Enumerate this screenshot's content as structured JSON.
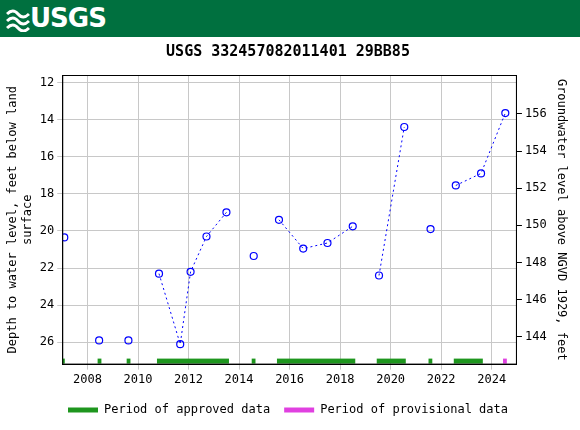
{
  "header": {
    "logo": "USGS"
  },
  "chart_data": {
    "type": "line",
    "title": "USGS 332457082011401 29BB85",
    "ylabel": [
      "Depth to water level, feet below land",
      "surface"
    ],
    "y2label": "Groundwater level above NGVD 1929, feet",
    "x": [
      2007.08,
      null,
      2008.46,
      null,
      2009.62,
      null,
      2010.83,
      2011.67,
      2012.08,
      2012.71,
      2013.5,
      null,
      2014.58,
      null,
      2015.58,
      2016.54,
      2017.5,
      2018.5,
      null,
      2019.54,
      2020.54,
      null,
      2021.58,
      null,
      2022.58,
      2023.58,
      2024.54
    ],
    "values": [
      20.35,
      null,
      25.9,
      null,
      25.9,
      null,
      22.3,
      26.1,
      22.2,
      20.3,
      19.0,
      null,
      21.35,
      null,
      19.4,
      20.95,
      20.65,
      19.75,
      null,
      22.4,
      14.4,
      null,
      19.9,
      null,
      17.55,
      16.9,
      13.65
    ],
    "color": "#0000ff",
    "marker": "circle",
    "line_style": "dotted",
    "xlim": [
      2007.0,
      2025.0
    ],
    "xticks": [
      2008,
      2010,
      2012,
      2014,
      2016,
      2018,
      2020,
      2022,
      2024
    ],
    "ylim": [
      11.6,
      27.2
    ],
    "yticks": [
      12,
      14,
      16,
      18,
      20,
      22,
      24,
      26
    ],
    "y2lim": [
      142.5,
      158.1
    ],
    "y2ticks": [
      144,
      146,
      148,
      150,
      152,
      154,
      156
    ],
    "grid": true,
    "legend": "bottom",
    "periods": [
      {
        "name": "Period of approved data",
        "color": "#1e961e",
        "ranges": [
          [
            2007.0,
            2007.1
          ],
          [
            2008.4,
            2008.55
          ],
          [
            2009.55,
            2009.7
          ],
          [
            2010.75,
            2013.6
          ],
          [
            2014.5,
            2014.65
          ],
          [
            2015.5,
            2018.6
          ],
          [
            2019.45,
            2020.6
          ],
          [
            2021.5,
            2021.65
          ],
          [
            2022.5,
            2023.65
          ]
        ]
      },
      {
        "name": "Period of provisional data",
        "color": "#e040e0",
        "ranges": [
          [
            2024.45,
            2024.6
          ]
        ]
      }
    ]
  }
}
